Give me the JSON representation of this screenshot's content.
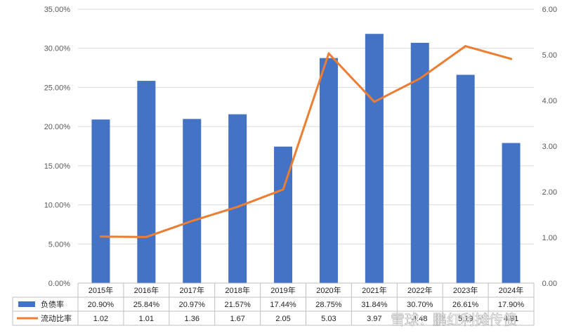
{
  "chart_data": {
    "type": "bar",
    "categories": [
      "2015年",
      "2016年",
      "2017年",
      "2018年",
      "2019年",
      "2020年",
      "2021年",
      "2022年",
      "2023年",
      "2024年"
    ],
    "series": [
      {
        "name": "负债率",
        "type": "bar",
        "axis": "left",
        "values": [
          20.9,
          25.84,
          20.97,
          21.57,
          17.44,
          28.75,
          31.84,
          30.7,
          26.61,
          17.9
        ],
        "labels": [
          "20.90%",
          "25.84%",
          "20.97%",
          "21.57%",
          "17.44%",
          "28.75%",
          "31.84%",
          "30.70%",
          "26.61%",
          "17.90%"
        ],
        "color": "#4472C4"
      },
      {
        "name": "流动比率",
        "type": "line",
        "axis": "right",
        "values": [
          1.02,
          1.01,
          1.36,
          1.67,
          2.05,
          5.03,
          3.97,
          4.48,
          5.19,
          4.91
        ],
        "labels": [
          "1.02",
          "1.01",
          "1.36",
          "1.67",
          "2.05",
          "5.03",
          "3.97",
          "4.48",
          "5.19",
          "4.91"
        ],
        "color": "#ED7D31"
      }
    ],
    "y_left": {
      "ylim": [
        0,
        35
      ],
      "ticks": [
        "0.00%",
        "5.00%",
        "10.00%",
        "15.00%",
        "20.00%",
        "25.00%",
        "30.00%",
        "35.00%"
      ]
    },
    "y_right": {
      "ylim": [
        0,
        6
      ],
      "ticks": [
        "0.00",
        "1.00",
        "2.00",
        "3.00",
        "4.00",
        "5.00",
        "6.00"
      ]
    },
    "grid": true,
    "legend": "data-table",
    "watermark": "雪球：鹏红利摊传债"
  }
}
